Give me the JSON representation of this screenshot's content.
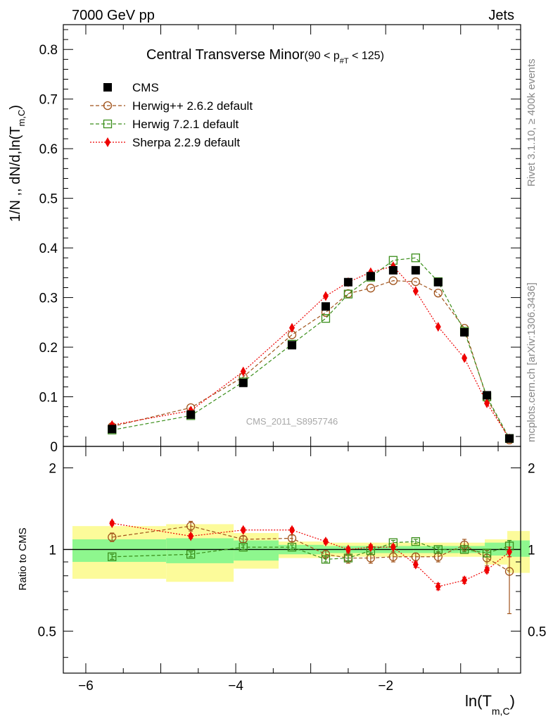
{
  "header": {
    "left": "7000 GeV pp",
    "right": "Jets"
  },
  "side": {
    "rivet": "Rivet 3.1.10, ≥ 400k events",
    "mcplots": "mcplots.cern.ch [arXiv:1306.3436]"
  },
  "watermark": "CMS_2011_S8957746",
  "colors": {
    "cms": "#000000",
    "herwigpp": "#a0521a",
    "herwig7": "#3a8e1a",
    "sherpa": "#ee0000",
    "band_inner": "#8ef78e",
    "band_outer": "#fcfb9a"
  },
  "chart_data": [
    {
      "type": "scatter",
      "title": "Central Transverse Minor",
      "title_sub": "(90 < p",
      "title_sub_idx": "#T",
      "title_sub_end": " < 125)",
      "ylabel": "1/N ,, dN/d,ln(T",
      "ylabel_sub": "m,C",
      "ylabel_end": ")",
      "ylim": [
        0,
        0.85
      ],
      "xlim": [
        -6.3,
        -0.2
      ],
      "yticks": [
        0,
        0.1,
        0.2,
        0.3,
        0.4,
        0.5,
        0.6,
        0.7,
        0.8
      ],
      "ytick_labels": [
        "0",
        "0.1",
        "0.2",
        "0.3",
        "0.4",
        "0.5",
        "0.6",
        "0.7",
        "0.8"
      ],
      "legend_position": "top-left",
      "series": [
        {
          "name": "CMS",
          "marker": "filled-square",
          "x": [
            -5.65,
            -4.6,
            -3.9,
            -3.25,
            -2.8,
            -2.5,
            -2.2,
            -1.9,
            -1.6,
            -1.3,
            -0.95,
            -0.65,
            -0.35
          ],
          "values": [
            0.035,
            0.064,
            0.128,
            0.204,
            0.282,
            0.331,
            0.343,
            0.355,
            0.355,
            0.331,
            0.23,
            0.103,
            0.016
          ]
        },
        {
          "name": "Herwig++ 2.6.2 default",
          "marker": "open-circle",
          "x": [
            -5.65,
            -4.6,
            -3.9,
            -3.25,
            -2.8,
            -2.5,
            -2.2,
            -1.9,
            -1.6,
            -1.3,
            -0.95,
            -0.65,
            -0.35
          ],
          "values": [
            0.04,
            0.078,
            0.14,
            0.225,
            0.27,
            0.308,
            0.319,
            0.334,
            0.332,
            0.309,
            0.238,
            0.097,
            0.013
          ]
        },
        {
          "name": "Herwig 7.2.1 default",
          "marker": "open-square",
          "x": [
            -5.65,
            -4.6,
            -3.9,
            -3.25,
            -2.8,
            -2.5,
            -2.2,
            -1.9,
            -1.6,
            -1.3,
            -0.95,
            -0.65,
            -0.35
          ],
          "values": [
            0.033,
            0.062,
            0.13,
            0.206,
            0.258,
            0.307,
            0.341,
            0.375,
            0.38,
            0.332,
            0.232,
            0.1,
            0.016
          ]
        },
        {
          "name": "Sherpa 2.2.9 default",
          "marker": "filled-diamond",
          "x": [
            -5.65,
            -4.6,
            -3.9,
            -3.25,
            -2.8,
            -2.5,
            -2.2,
            -1.9,
            -1.6,
            -1.3,
            -0.95,
            -0.65,
            -0.35
          ],
          "values": [
            0.043,
            0.072,
            0.151,
            0.239,
            0.303,
            0.331,
            0.351,
            0.363,
            0.313,
            0.241,
            0.178,
            0.087,
            0.016
          ]
        }
      ]
    },
    {
      "type": "scatter",
      "ylabel": "Ratio to CMS",
      "xlabel": "ln(T",
      "xlabel_sub": "m,C",
      "xlabel_end": ")",
      "xlim": [
        -6.3,
        -0.2
      ],
      "ylim": [
        0.35,
        2.4
      ],
      "reference": 1,
      "xticks": [
        -6,
        -4,
        -2
      ],
      "xtick_labels": [
        "−6",
        "−4",
        "−2"
      ],
      "yticks": [
        0.5,
        1,
        2
      ],
      "ytick_labels": [
        "0.5",
        "1",
        "2"
      ],
      "bands": {
        "bin_edges": [
          -6.3,
          -5.05,
          -4.15,
          -3.55,
          -2.95,
          -2.65,
          -2.35,
          -2.05,
          -1.75,
          -1.45,
          -1.15,
          -0.8,
          -0.5,
          -0.2
        ],
        "inner_low": [
          0.9,
          0.89,
          0.91,
          0.96,
          0.97,
          0.97,
          0.97,
          0.97,
          0.97,
          0.97,
          0.97,
          0.95,
          0.94
        ],
        "inner_high": [
          1.09,
          1.1,
          1.08,
          1.04,
          1.03,
          1.03,
          1.03,
          1.03,
          1.03,
          1.03,
          1.03,
          1.06,
          1.08
        ],
        "outer_low": [
          0.78,
          0.76,
          0.85,
          0.93,
          0.94,
          0.94,
          0.94,
          0.94,
          0.94,
          0.94,
          0.94,
          0.88,
          0.82
        ],
        "outer_high": [
          1.22,
          1.24,
          1.15,
          1.07,
          1.06,
          1.06,
          1.06,
          1.06,
          1.06,
          1.06,
          1.06,
          1.09,
          1.17
        ]
      },
      "series": [
        {
          "name": "Herwig++ 2.6.2 default",
          "x": [
            -5.65,
            -4.6,
            -3.9,
            -3.25,
            -2.8,
            -2.5,
            -2.2,
            -1.9,
            -1.6,
            -1.3,
            -0.95,
            -0.65,
            -0.35
          ],
          "values": [
            1.11,
            1.22,
            1.09,
            1.1,
            0.96,
            0.93,
            0.93,
            0.94,
            0.94,
            0.94,
            1.04,
            0.93,
            0.83
          ],
          "errors": [
            0.04,
            0.05,
            0.03,
            0.03,
            0.03,
            0.04,
            0.04,
            0.04,
            0.03,
            0.04,
            0.05,
            0.06,
            0.25
          ]
        },
        {
          "name": "Herwig 7.2.1 default",
          "x": [
            -5.65,
            -4.6,
            -3.9,
            -3.25,
            -2.8,
            -2.5,
            -2.2,
            -1.9,
            -1.6,
            -1.3,
            -0.95,
            -0.65,
            -0.35
          ],
          "values": [
            0.94,
            0.96,
            1.02,
            1.02,
            0.92,
            0.93,
            0.99,
            1.06,
            1.07,
            1.0,
            1.0,
            0.97,
            1.03
          ],
          "errors": [
            0.02,
            0.02,
            0.02,
            0.02,
            0.02,
            0.02,
            0.02,
            0.02,
            0.02,
            0.02,
            0.02,
            0.03,
            0.05
          ]
        },
        {
          "name": "Sherpa 2.2.9 default",
          "x": [
            -5.65,
            -4.6,
            -3.9,
            -3.25,
            -2.8,
            -2.5,
            -2.2,
            -1.9,
            -1.6,
            -1.3,
            -0.95,
            -0.65,
            -0.35
          ],
          "values": [
            1.25,
            1.12,
            1.18,
            1.18,
            1.07,
            1.0,
            1.02,
            1.02,
            0.88,
            0.73,
            0.77,
            0.84,
            0.98
          ],
          "errors": [
            0.02,
            0.02,
            0.02,
            0.02,
            0.02,
            0.02,
            0.02,
            0.02,
            0.02,
            0.02,
            0.02,
            0.02,
            0.04
          ]
        }
      ]
    }
  ]
}
